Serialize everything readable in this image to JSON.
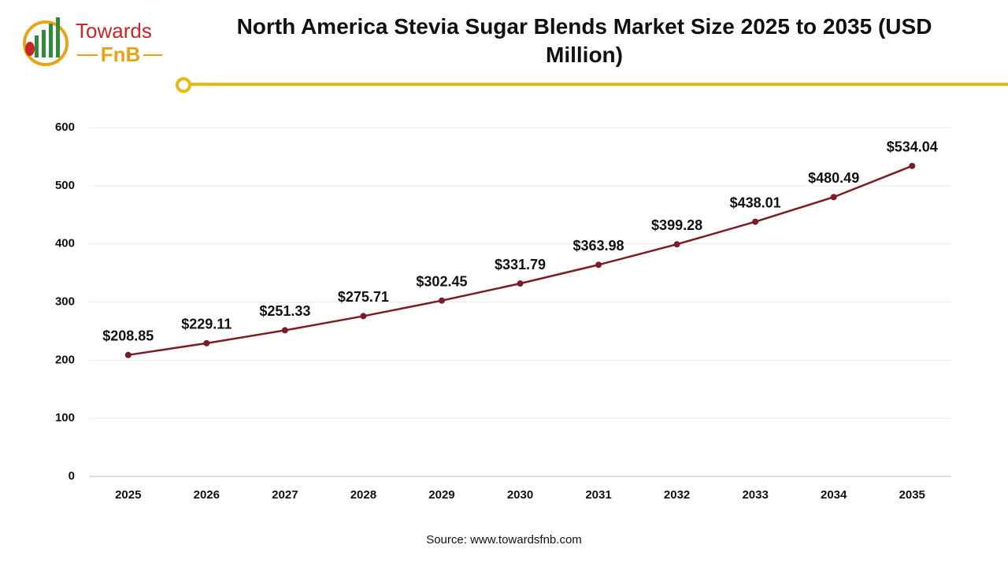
{
  "logo": {
    "line1": "Towards",
    "line2": "FnB"
  },
  "chart_data": {
    "type": "line",
    "title": "North America Stevia Sugar Blends Market Size 2025 to 2035 (USD Million)",
    "source": "Source: www.towardsfnb.com",
    "categories": [
      "2025",
      "2026",
      "2027",
      "2028",
      "2029",
      "2030",
      "2031",
      "2032",
      "2033",
      "2034",
      "2035"
    ],
    "series": [
      {
        "color": "#7b1c24",
        "values": [
          208.85,
          229.11,
          251.33,
          275.71,
          302.45,
          331.79,
          363.98,
          399.28,
          438.01,
          480.49,
          534.04
        ],
        "value_labels": [
          "$208.85",
          "$229.11",
          "$251.33",
          "$275.71",
          "$302.45",
          "$331.79",
          "$363.98",
          "$399.28",
          "$438.01",
          "$480.49",
          "$534.04"
        ]
      }
    ],
    "ylim": [
      0,
      600
    ],
    "yticks": [
      0,
      100,
      200,
      300,
      400,
      500,
      600
    ],
    "grid": true
  }
}
